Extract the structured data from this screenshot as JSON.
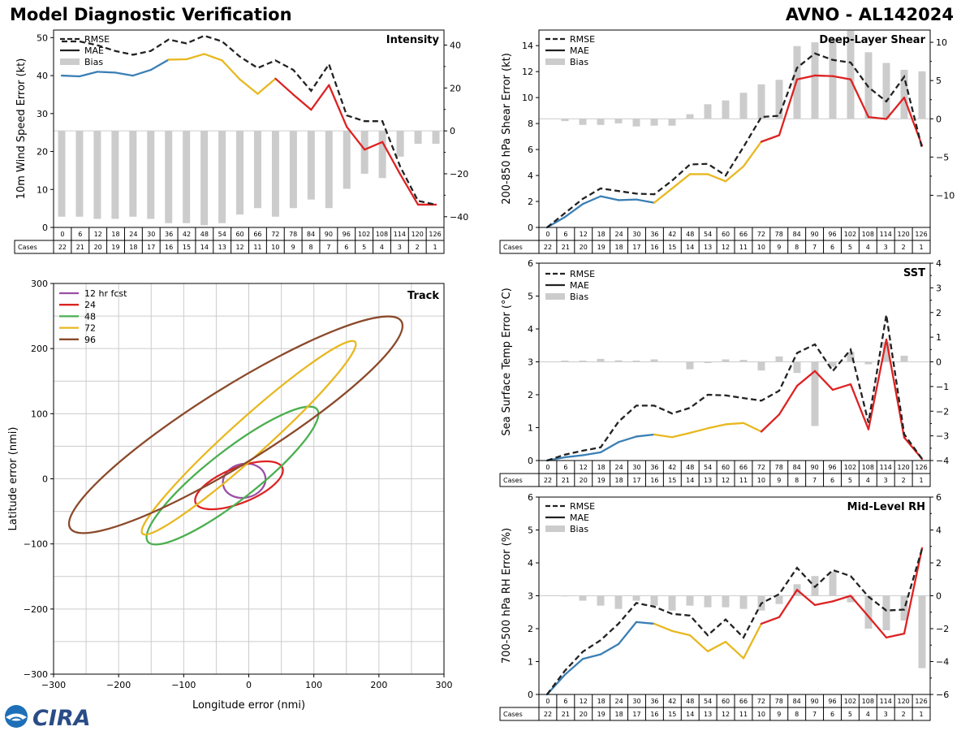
{
  "header": {
    "title": "Model Diagnostic Verification",
    "model": "AVNO - AL142024"
  },
  "logo": {
    "text": "CIRA"
  },
  "colors": {
    "rmse": "#222222",
    "bias": "#cccccc",
    "grid": "#cccccc",
    "mae_0_36": "#3a7fb5",
    "mae_36_72": "#e8b820",
    "mae_72_up": "#dd2222",
    "track_12": "#9b4ea6",
    "track_24": "#dd2222",
    "track_48": "#4caf50",
    "track_72": "#e8b820",
    "track_96": "#8b4a2b"
  },
  "legend_labels": {
    "rmse": "RMSE",
    "mae": "MAE",
    "bias": "Bias"
  },
  "chart_data": [
    {
      "id": "intensity",
      "type": "line",
      "title": "Intensity",
      "ylabel": "10m Wind Speed Error (kt)",
      "ylim": [
        0,
        52
      ],
      "yticks": [
        0,
        10,
        20,
        30,
        40,
        50
      ],
      "y2lim": [
        -45,
        47
      ],
      "y2ticks": [
        -40,
        -20,
        0,
        20,
        40
      ],
      "x": [
        0,
        6,
        12,
        18,
        24,
        30,
        36,
        42,
        48,
        54,
        60,
        66,
        72,
        78,
        84,
        90,
        96,
        102,
        108,
        114,
        120,
        126
      ],
      "cases": [
        22,
        21,
        20,
        19,
        18,
        17,
        16,
        15,
        14,
        13,
        12,
        11,
        10,
        9,
        8,
        7,
        6,
        5,
        4,
        3,
        2,
        1
      ],
      "cases_label": "Cases",
      "rmse": [
        49,
        49,
        48,
        46.5,
        45.5,
        46.5,
        49.5,
        48.5,
        50.5,
        49,
        45,
        42,
        44,
        41.5,
        36,
        43,
        29.5,
        28,
        28,
        16,
        7,
        6
      ],
      "mae": [
        40,
        39.8,
        41,
        40.8,
        40,
        41.5,
        44.2,
        44.3,
        45.7,
        44,
        39,
        35.2,
        39.2,
        35,
        31,
        37.5,
        26.5,
        20.5,
        22.5,
        14,
        6,
        6
      ],
      "bias": [
        -40,
        -40,
        -41,
        -41,
        -40,
        -41,
        -43,
        -43,
        -44,
        -43,
        -39,
        -36,
        -40,
        -36,
        -32,
        -36,
        -27,
        -20,
        -22,
        -12,
        -6,
        -6
      ]
    },
    {
      "id": "shear",
      "type": "line",
      "title": "Deep-Layer Shear",
      "ylabel": "200-850 hPa Shear Error (kt)",
      "ylim": [
        0,
        15.2
      ],
      "yticks": [
        0,
        2,
        4,
        6,
        8,
        10,
        12,
        14
      ],
      "y2lim": [
        -14.2,
        11.6
      ],
      "y2ticks": [
        -10,
        -5,
        0,
        5,
        10
      ],
      "x": [
        0,
        6,
        12,
        18,
        24,
        30,
        36,
        42,
        48,
        54,
        60,
        66,
        72,
        78,
        84,
        90,
        96,
        102,
        108,
        114,
        120,
        126
      ],
      "cases": [
        22,
        21,
        20,
        19,
        18,
        17,
        16,
        15,
        14,
        13,
        12,
        11,
        10,
        9,
        8,
        7,
        6,
        5,
        4,
        3,
        2,
        1
      ],
      "cases_label": "Cases",
      "rmse": [
        0,
        1.1,
        2.2,
        3.0,
        2.8,
        2.6,
        2.55,
        3.6,
        4.85,
        4.9,
        4.0,
        6.2,
        8.5,
        8.6,
        12.3,
        13.4,
        12.9,
        12.7,
        10.8,
        9.7,
        11.6,
        6.1
      ],
      "mae": [
        0,
        0.8,
        1.8,
        2.4,
        2.1,
        2.15,
        1.9,
        3.0,
        4.1,
        4.1,
        3.55,
        4.7,
        6.6,
        7.1,
        11.4,
        11.7,
        11.65,
        11.4,
        8.5,
        8.35,
        10,
        6.3
      ],
      "bias": [
        0,
        -0.3,
        -0.8,
        -0.8,
        -0.6,
        -1.0,
        -0.9,
        -0.9,
        0.6,
        1.9,
        2.4,
        3.4,
        4.5,
        5.1,
        9.5,
        10,
        10.5,
        11.5,
        8.7,
        7.3,
        6.4,
        6.2
      ]
    },
    {
      "id": "sst",
      "type": "line",
      "title": "SST",
      "ylabel": "Sea Surface Temp Error (°C)",
      "ylim": [
        0,
        6
      ],
      "yticks": [
        0,
        1,
        2,
        3,
        4,
        5,
        6
      ],
      "y2lim": [
        -4,
        4
      ],
      "y2ticks": [
        -4,
        -3,
        -2,
        -1,
        0,
        1,
        2,
        3,
        4
      ],
      "x": [
        0,
        6,
        12,
        18,
        24,
        30,
        36,
        42,
        48,
        54,
        60,
        66,
        72,
        78,
        84,
        90,
        96,
        102,
        108,
        114,
        120,
        126
      ],
      "cases": [
        22,
        21,
        20,
        19,
        18,
        17,
        16,
        15,
        14,
        13,
        12,
        11,
        10,
        9,
        8,
        7,
        6,
        5,
        4,
        3,
        2,
        1
      ],
      "cases_label": "Cases",
      "rmse": [
        0,
        0.18,
        0.3,
        0.4,
        1.18,
        1.67,
        1.67,
        1.43,
        1.6,
        2.0,
        1.98,
        1.9,
        1.82,
        2.12,
        3.27,
        3.53,
        2.72,
        3.37,
        1.15,
        4.43,
        0.8,
        0.05
      ],
      "mae": [
        0,
        0.1,
        0.16,
        0.25,
        0.56,
        0.73,
        0.79,
        0.71,
        0.84,
        0.98,
        1.1,
        1.14,
        0.88,
        1.4,
        2.27,
        2.72,
        2.15,
        2.32,
        0.95,
        3.68,
        0.7,
        0.05
      ],
      "bias": [
        0,
        0.05,
        0.05,
        0.12,
        0.06,
        0.05,
        0.1,
        0,
        -0.3,
        -0.05,
        0.1,
        0.08,
        -0.35,
        0.22,
        -0.45,
        -2.6,
        -0.2,
        0.4,
        -0.1,
        0.8,
        0.25,
        0
      ]
    },
    {
      "id": "rh",
      "type": "line",
      "title": "Mid-Level RH",
      "ylabel": "700-500 hPa RH Error (%)",
      "ylim": [
        0,
        6
      ],
      "yticks": [
        0,
        1,
        2,
        3,
        4,
        5,
        6
      ],
      "y2lim": [
        -6,
        6
      ],
      "y2ticks": [
        -6,
        -4,
        -2,
        0,
        2,
        4,
        6
      ],
      "x": [
        0,
        6,
        12,
        18,
        24,
        30,
        36,
        42,
        48,
        54,
        60,
        66,
        72,
        78,
        84,
        90,
        96,
        102,
        108,
        114,
        120,
        126
      ],
      "cases": [
        22,
        21,
        20,
        19,
        18,
        17,
        16,
        15,
        14,
        13,
        12,
        11,
        10,
        9,
        8,
        7,
        6,
        5,
        4,
        3,
        2,
        1
      ],
      "cases_label": "Cases",
      "rmse": [
        0,
        0.72,
        1.3,
        1.65,
        2.15,
        2.78,
        2.67,
        2.45,
        2.4,
        1.8,
        2.28,
        1.73,
        2.77,
        3.05,
        3.85,
        3.27,
        3.78,
        3.6,
        2.97,
        2.55,
        2.58,
        4.43
      ],
      "mae": [
        0,
        0.6,
        1.08,
        1.22,
        1.53,
        2.2,
        2.15,
        1.93,
        1.8,
        1.31,
        1.6,
        1.1,
        2.15,
        2.35,
        3.18,
        2.72,
        2.83,
        3.0,
        2.37,
        1.73,
        1.85,
        4.45
      ],
      "bias": [
        0,
        -0.02,
        -0.3,
        -0.6,
        -0.8,
        -0.3,
        -0.6,
        -0.9,
        -0.6,
        -0.7,
        -0.7,
        -0.8,
        -0.9,
        -0.5,
        0.7,
        1.2,
        1.45,
        -0.4,
        -2.0,
        -2.1,
        -1.5,
        -4.4
      ]
    },
    {
      "id": "track",
      "type": "scatter",
      "title": "Track",
      "xlabel": "Longitude error (nmi)",
      "ylabel": "Latitude error (nmi)",
      "xlim": [
        -300,
        300
      ],
      "ylim": [
        -300,
        300
      ],
      "xticks": [
        -300,
        -200,
        -100,
        0,
        100,
        200,
        300
      ],
      "yticks": [
        -300,
        -200,
        -100,
        0,
        100,
        200,
        300
      ],
      "ellipses": [
        {
          "label": "12 hr fcst",
          "color_key": "track_12",
          "cx": -7,
          "cy": -3,
          "rx": 33,
          "ry": 26,
          "angle": 12
        },
        {
          "label": "24",
          "color_key": "track_24",
          "cx": -15,
          "cy": -10,
          "rx": 72,
          "ry": 27,
          "angle": 22
        },
        {
          "label": "48",
          "color_key": "track_48",
          "cx": -25,
          "cy": 5,
          "rx": 165,
          "ry": 38,
          "angle": 38
        },
        {
          "label": "72",
          "color_key": "track_72",
          "cx": 0,
          "cy": 63,
          "rx": 220,
          "ry": 28,
          "angle": 42
        },
        {
          "label": "96",
          "color_key": "track_96",
          "cx": -20,
          "cy": 83,
          "rx": 300,
          "ry": 58,
          "angle": 32
        }
      ]
    }
  ]
}
